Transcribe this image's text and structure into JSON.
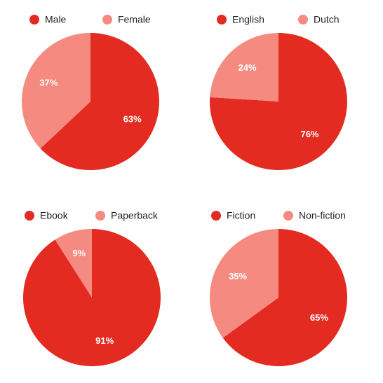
{
  "chart_data": [
    {
      "type": "pie",
      "categories": [
        "Male",
        "Female"
      ],
      "values": [
        63,
        37
      ],
      "value_labels": [
        "63%",
        "37%"
      ],
      "colors": [
        "#e32b22",
        "#f58a80"
      ]
    },
    {
      "type": "pie",
      "categories": [
        "English",
        "Dutch"
      ],
      "values": [
        76,
        24
      ],
      "value_labels": [
        "76%",
        "24%"
      ],
      "colors": [
        "#e32b22",
        "#f58a80"
      ]
    },
    {
      "type": "pie",
      "categories": [
        "Ebook",
        "Paperback"
      ],
      "values": [
        91,
        9
      ],
      "value_labels": [
        "91%",
        "9%"
      ],
      "colors": [
        "#e32b22",
        "#f58a80"
      ]
    },
    {
      "type": "pie",
      "categories": [
        "Fiction",
        "Non-fiction"
      ],
      "values": [
        65,
        35
      ],
      "value_labels": [
        "65%",
        "35%"
      ],
      "colors": [
        "#e32b22",
        "#f58a80"
      ]
    }
  ]
}
